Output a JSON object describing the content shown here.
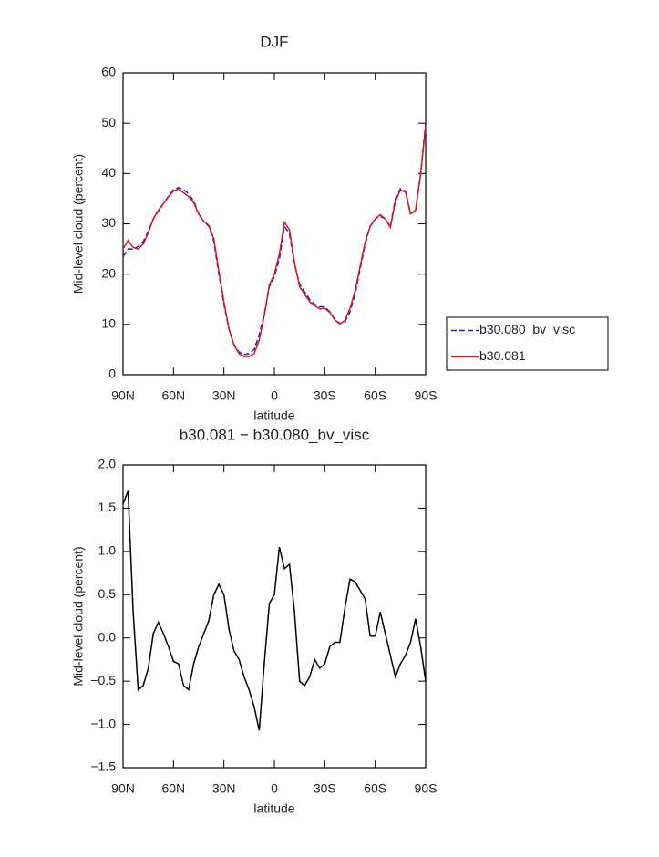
{
  "chart_data": [
    {
      "type": "line",
      "title": "DJF",
      "xlabel": "latitude",
      "ylabel": "Mid-level cloud (percent)",
      "x": [
        90,
        87,
        84,
        81,
        78,
        75,
        72,
        69,
        66,
        63,
        60,
        57,
        54,
        51,
        48,
        45,
        42,
        39,
        36,
        33,
        30,
        27,
        24,
        21,
        18,
        15,
        12,
        9,
        6,
        3,
        0,
        -3,
        -6,
        -9,
        -12,
        -15,
        -18,
        -21,
        -24,
        -27,
        -30,
        -33,
        -36,
        -39,
        -42,
        -45,
        -48,
        -51,
        -54,
        -57,
        -60,
        -63,
        -66,
        -69,
        -72,
        -75,
        -78,
        -81,
        -84,
        -87,
        -90
      ],
      "series": [
        {
          "name": "b30.080_bv_visc",
          "color": "#1f1fd6",
          "linestyle": "dashed",
          "values": [
            23.5,
            25,
            25,
            25.5,
            26.5,
            28.5,
            31,
            32.5,
            34,
            35.5,
            36.8,
            37.2,
            36.8,
            36,
            34.5,
            32,
            30.5,
            29.5,
            26.5,
            20,
            14,
            9,
            6,
            4.5,
            4,
            4.2,
            5,
            8,
            12,
            17.5,
            19.5,
            23,
            29.5,
            28,
            22,
            18,
            16.5,
            15,
            14,
            13.5,
            13.5,
            12.5,
            11,
            10.2,
            10.5,
            12.5,
            16,
            21,
            26,
            29.5,
            31,
            31.5,
            31,
            29.5,
            35,
            37,
            36.5,
            32,
            32.5,
            40,
            50
          ]
        },
        {
          "name": "b30.081",
          "color": "#e01414",
          "linestyle": "solid",
          "values": [
            25,
            26.7,
            25.3,
            25,
            26,
            28.2,
            31,
            32.7,
            34,
            35.4,
            36.5,
            36.9,
            36.2,
            35.4,
            34.2,
            31.9,
            30.5,
            29.7,
            27,
            20.6,
            14.5,
            9.1,
            5.9,
            4.2,
            3.6,
            3.6,
            4.2,
            6.9,
            11.7,
            17.9,
            20,
            24,
            30.3,
            28.8,
            22.3,
            17.5,
            16,
            14.5,
            13.7,
            13.1,
            13.2,
            12.4,
            10.9,
            10.1,
            10.8,
            13.2,
            16.6,
            21.5,
            26.4,
            29.5,
            31,
            31.8,
            31,
            29.3,
            34.5,
            36.7,
            36.3,
            32,
            32.7,
            39.9,
            49.5
          ]
        }
      ],
      "xlim": [
        90,
        -90
      ],
      "xticks": [
        {
          "value": 90,
          "label": "90N"
        },
        {
          "value": 60,
          "label": "60N"
        },
        {
          "value": 30,
          "label": "30N"
        },
        0,
        {
          "value": -30,
          "label": "30S"
        },
        {
          "value": -60,
          "label": "60S"
        },
        {
          "value": -90,
          "label": "90S"
        }
      ],
      "ylim": [
        0,
        60
      ],
      "yticks": [
        0,
        10,
        20,
        30,
        40,
        50,
        60
      ],
      "legend": "right"
    },
    {
      "type": "line",
      "title": "b30.081 − b30.080_bv_visc",
      "xlabel": "latitude",
      "ylabel": "Mid-level cloud (percent)",
      "x": [
        90,
        87,
        84,
        81,
        78,
        75,
        72,
        69,
        66,
        63,
        60,
        57,
        54,
        51,
        48,
        45,
        42,
        39,
        36,
        33,
        30,
        27,
        24,
        21,
        18,
        15,
        12,
        9,
        6,
        3,
        0,
        -3,
        -6,
        -9,
        -12,
        -15,
        -18,
        -21,
        -24,
        -27,
        -30,
        -33,
        -36,
        -39,
        -42,
        -45,
        -48,
        -51,
        -54,
        -57,
        -60,
        -63,
        -66,
        -69,
        -72,
        -75,
        -78,
        -81,
        -84,
        -87,
        -90
      ],
      "color": "#000000",
      "values": [
        1.55,
        1.7,
        0.3,
        -0.6,
        -0.55,
        -0.35,
        0.05,
        0.18,
        0.05,
        -0.1,
        -0.27,
        -0.3,
        -0.55,
        -0.6,
        -0.3,
        -0.1,
        0.05,
        0.2,
        0.5,
        0.62,
        0.5,
        0.1,
        -0.15,
        -0.25,
        -0.45,
        -0.6,
        -0.8,
        -1.07,
        -0.3,
        0.4,
        0.5,
        1.05,
        0.8,
        0.85,
        0.3,
        -0.5,
        -0.55,
        -0.45,
        -0.25,
        -0.35,
        -0.3,
        -0.1,
        -0.05,
        -0.05,
        0.35,
        0.68,
        0.65,
        0.55,
        0.45,
        0.02,
        0.02,
        0.3,
        0.05,
        -0.2,
        -0.45,
        -0.3,
        -0.2,
        -0.05,
        0.22,
        -0.1,
        -0.5
      ],
      "xlim": [
        90,
        -90
      ],
      "xticks": [
        {
          "value": 90,
          "label": "90N"
        },
        {
          "value": 60,
          "label": "60N"
        },
        {
          "value": 30,
          "label": "30N"
        },
        0,
        {
          "value": -30,
          "label": "30S"
        },
        {
          "value": -60,
          "label": "60S"
        },
        {
          "value": -90,
          "label": "90S"
        }
      ],
      "ylim": [
        -1.5,
        2.0
      ],
      "yticks": [
        {
          "value": -1.5,
          "label": "−1.5"
        },
        {
          "value": -1.0,
          "label": "−1.0"
        },
        {
          "value": -0.5,
          "label": "−0.5"
        },
        {
          "value": 0,
          "label": "0.0"
        },
        {
          "value": 0.5,
          "label": "0.5"
        },
        {
          "value": 1.0,
          "label": "1.0"
        },
        {
          "value": 1.5,
          "label": "1.5"
        },
        {
          "value": 2.0,
          "label": "2.0"
        }
      ]
    }
  ]
}
